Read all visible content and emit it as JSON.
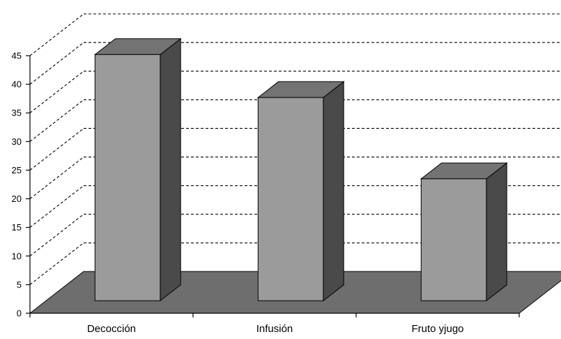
{
  "chart_data": {
    "type": "bar",
    "categories": [
      "Decocción",
      "Infusión",
      "Fruto yjugo"
    ],
    "values": [
      43,
      35.5,
      21.3
    ],
    "ylim": [
      0,
      45
    ],
    "yticks": [
      0,
      5,
      10,
      15,
      20,
      25,
      30,
      35,
      40,
      45
    ],
    "grid": true
  },
  "colors": {
    "background": "#ffffff",
    "bar_front": "#9b9b9b",
    "bar_top": "#737373",
    "bar_side": "#4a4a4a",
    "floor": "#6e6e6e",
    "outline": "#000000",
    "gridline": "#000000"
  }
}
